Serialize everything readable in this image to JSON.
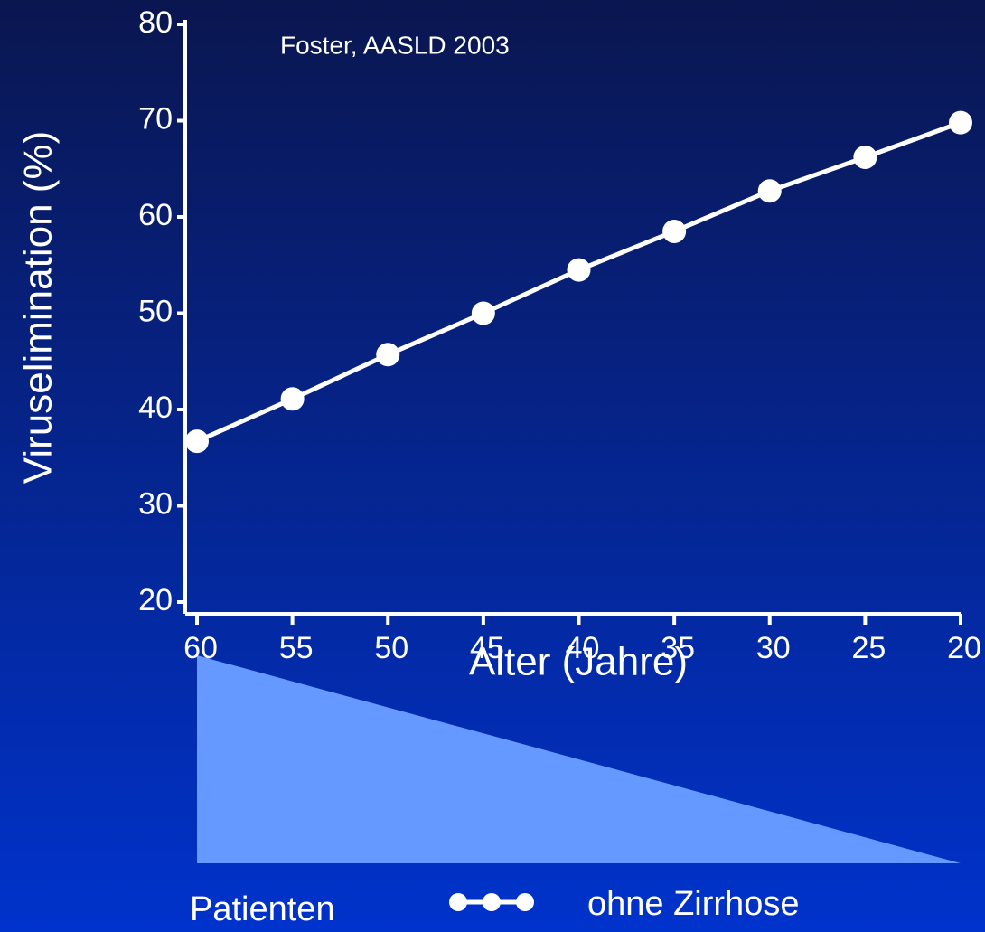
{
  "chart_data": {
    "type": "line",
    "y_label": "Viruselimination (%)",
    "x_label": "Alter (Jahre)",
    "annotation": "Foster, AASLD 2003",
    "legend_title": "Patienten",
    "x": [
      60,
      55,
      50,
      45,
      40,
      35,
      30,
      25,
      20
    ],
    "series": [
      {
        "name": "ohne Zirrhose",
        "color": "#ffffff",
        "values": [
          36.7,
          41.1,
          45.7,
          50,
          54.5,
          58.5,
          62.7,
          66.2,
          69.8
        ]
      }
    ],
    "xlim": [
      60,
      20
    ],
    "xticks": [
      60,
      55,
      50,
      45,
      40,
      35,
      30,
      25,
      20
    ],
    "ylim": [
      20,
      80
    ],
    "yticks": [
      20,
      30,
      40,
      50,
      60,
      70,
      80
    ]
  }
}
